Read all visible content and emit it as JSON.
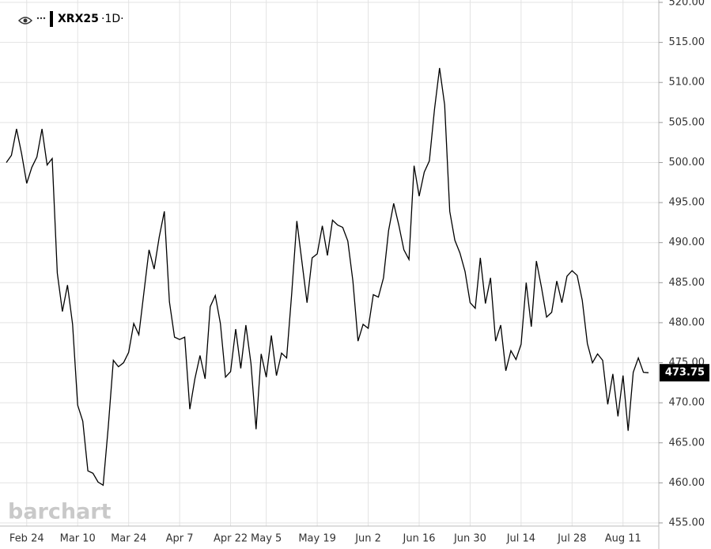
{
  "chart_data": {
    "type": "line",
    "series": [
      {
        "name": "XRX25",
        "color": "#000000",
        "values": [
          500.0,
          500.9,
          504.2,
          501.1,
          497.4,
          499.4,
          500.7,
          504.2,
          499.7,
          500.5,
          486.2,
          481.4,
          484.7,
          479.8,
          469.7,
          467.7,
          461.5,
          461.2,
          460.1,
          459.7,
          467.0,
          475.3,
          474.5,
          475.0,
          476.3,
          479.9,
          478.5,
          483.8,
          489.1,
          486.7,
          490.7,
          493.9,
          482.6,
          478.2,
          477.9,
          478.2,
          469.2,
          473.0,
          475.9,
          473.0,
          482.0,
          483.4,
          479.9,
          473.2,
          473.9,
          479.2,
          474.3,
          479.7,
          474.9,
          466.7,
          476.1,
          473.2,
          478.4,
          473.4,
          476.2,
          475.6,
          483.7,
          492.7,
          487.6,
          482.5,
          488.1,
          488.6,
          492.1,
          488.4,
          492.8,
          492.2,
          491.9,
          490.2,
          485.2,
          477.7,
          479.8,
          479.3,
          483.5,
          483.2,
          485.6,
          491.5,
          494.9,
          492.2,
          489.1,
          487.9,
          499.6,
          495.8,
          498.8,
          500.2,
          506.6,
          511.8,
          507.2,
          493.9,
          490.3,
          488.7,
          486.4,
          482.5,
          481.8,
          488.1,
          482.4,
          485.6,
          477.7,
          479.7,
          474.0,
          476.5,
          475.4,
          477.3,
          485.0,
          479.5,
          487.7,
          484.4,
          480.7,
          481.3,
          485.2,
          482.5,
          485.8,
          486.5,
          485.9,
          482.8,
          477.4,
          475.0,
          476.1,
          475.3,
          469.8,
          473.6,
          468.3,
          473.4,
          466.5,
          473.8,
          475.6,
          473.8,
          473.75
        ]
      }
    ],
    "categories": [
      null,
      null,
      null,
      null,
      "Feb 24",
      null,
      null,
      null,
      null,
      null,
      null,
      null,
      null,
      null,
      "Mar 10",
      null,
      null,
      null,
      null,
      null,
      null,
      null,
      null,
      null,
      "Mar 24",
      null,
      null,
      null,
      null,
      null,
      null,
      null,
      null,
      null,
      "Apr 7",
      null,
      null,
      null,
      null,
      null,
      null,
      null,
      null,
      null,
      "Apr 22",
      null,
      null,
      null,
      null,
      null,
      null,
      "May 5",
      null,
      null,
      null,
      null,
      null,
      null,
      null,
      null,
      null,
      "May 19",
      null,
      null,
      null,
      null,
      null,
      null,
      null,
      null,
      null,
      "Jun 2",
      null,
      null,
      null,
      null,
      null,
      null,
      null,
      null,
      null,
      "Jun 16",
      null,
      null,
      null,
      null,
      null,
      null,
      null,
      null,
      null,
      "Jun 30",
      null,
      null,
      null,
      null,
      null,
      null,
      null,
      null,
      null,
      "Jul 14",
      null,
      null,
      null,
      null,
      null,
      null,
      null,
      null,
      null,
      "Jul 28",
      null,
      null,
      null,
      null,
      null,
      null,
      null,
      null,
      null,
      "Aug 11",
      null,
      null,
      null,
      null,
      null
    ],
    "interval": "·1D·",
    "last_price": 473.75,
    "watermark": "barchart",
    "ylim": [
      455,
      520
    ],
    "yticks": [
      {
        "value": 455,
        "label": "455.00"
      },
      {
        "value": 460,
        "label": "460.00"
      },
      {
        "value": 465,
        "label": "465.00"
      },
      {
        "value": 470,
        "label": "470.00"
      },
      {
        "value": 475,
        "label": "475.00"
      },
      {
        "value": 480,
        "label": "480.00"
      },
      {
        "value": 485,
        "label": "485.00"
      },
      {
        "value": 490,
        "label": "490.00"
      },
      {
        "value": 495,
        "label": "495.00"
      },
      {
        "value": 500,
        "label": "500.00"
      },
      {
        "value": 505,
        "label": "505.00"
      },
      {
        "value": 510,
        "label": "510.00"
      },
      {
        "value": 515,
        "label": "515.00"
      },
      {
        "value": 520,
        "label": "520.00"
      }
    ],
    "grid": true
  }
}
